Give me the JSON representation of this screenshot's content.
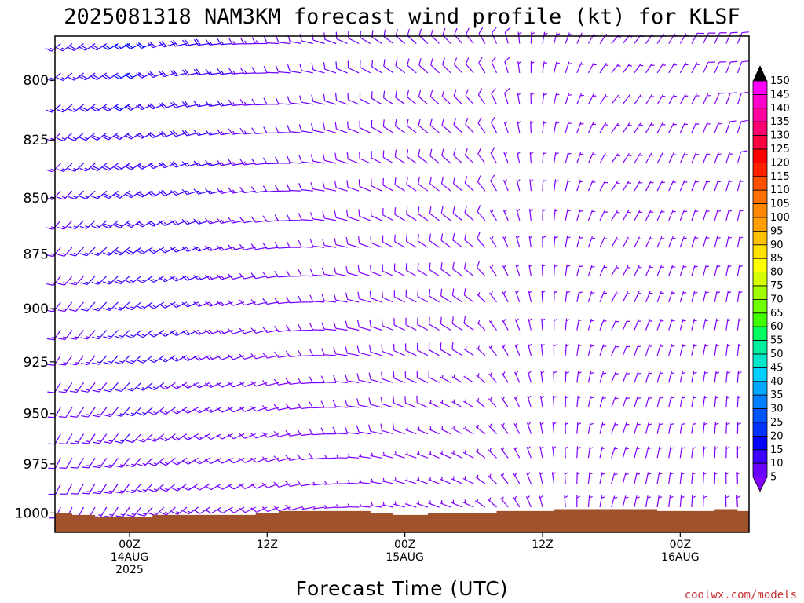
{
  "title": "2025081318 NAM3KM forecast wind profile (kt) for KLSF",
  "credit": "coolwx.com/models",
  "chart_data": {
    "type": "wind-barb-time-height",
    "xlabel": "Forecast Time (UTC)",
    "ylabel": "",
    "y_ticks": [
      "800",
      "825",
      "850",
      "875",
      "900",
      "925",
      "950",
      "975",
      "1000"
    ],
    "y_range_hpa": [
      782,
      1010
    ],
    "x_range_hours": [
      -6.5,
      54
    ],
    "x_ticks": [
      {
        "hour": 0,
        "line1": "00Z",
        "line2": "14AUG",
        "line3": "2025"
      },
      {
        "hour": 12,
        "line1": "12Z",
        "line2": "",
        "line3": ""
      },
      {
        "hour": 24,
        "line1": "00Z",
        "line2": "15AUG",
        "line3": ""
      },
      {
        "hour": 36,
        "line1": "12Z",
        "line2": "",
        "line3": ""
      },
      {
        "hour": 48,
        "line1": "00Z",
        "line2": "16AUG",
        "line3": ""
      }
    ],
    "levels_hpa": [
      785,
      797,
      810,
      822,
      835,
      847,
      860,
      872,
      885,
      897,
      910,
      922,
      935,
      947,
      960,
      972,
      985,
      997
    ],
    "wind_keyframes": [
      {
        "hour": -6,
        "speed": 15,
        "dir": 230
      },
      {
        "hour": 0,
        "speed": 20,
        "dir": 240
      },
      {
        "hour": 6,
        "speed": 18,
        "dir": 260
      },
      {
        "hour": 12,
        "speed": 12,
        "dir": 270
      },
      {
        "hour": 18,
        "speed": 10,
        "dir": 290
      },
      {
        "hour": 24,
        "speed": 10,
        "dir": 310
      },
      {
        "hour": 30,
        "speed": 9,
        "dir": 320
      },
      {
        "hour": 36,
        "speed": 6,
        "dir": 10
      },
      {
        "hour": 42,
        "speed": 5,
        "dir": 40
      },
      {
        "hour": 48,
        "speed": 7,
        "dir": 30
      },
      {
        "hour": 54,
        "speed": 8,
        "dir": 20
      }
    ],
    "surface_pressure": [
      {
        "hour": -6.5,
        "hpa": 1000
      },
      {
        "hour": -5,
        "hpa": 1001
      },
      {
        "hour": -3,
        "hpa": 1002
      },
      {
        "hour": 1,
        "hpa": 1002
      },
      {
        "hour": 2,
        "hpa": 1001
      },
      {
        "hour": 9,
        "hpa": 1001
      },
      {
        "hour": 11,
        "hpa": 1000
      },
      {
        "hour": 13,
        "hpa": 999
      },
      {
        "hour": 19,
        "hpa": 999
      },
      {
        "hour": 21,
        "hpa": 1000
      },
      {
        "hour": 23,
        "hpa": 1001
      },
      {
        "hour": 26,
        "hpa": 1000
      },
      {
        "hour": 32,
        "hpa": 999
      },
      {
        "hour": 37,
        "hpa": 998
      },
      {
        "hour": 46,
        "hpa": 999
      },
      {
        "hour": 51,
        "hpa": 998
      },
      {
        "hour": 53,
        "hpa": 999
      },
      {
        "hour": 54,
        "hpa": 999
      }
    ],
    "colorbar": {
      "labels": [
        5,
        10,
        15,
        20,
        25,
        30,
        35,
        40,
        45,
        50,
        55,
        60,
        65,
        70,
        75,
        80,
        85,
        90,
        95,
        100,
        105,
        110,
        115,
        120,
        125,
        130,
        135,
        140,
        145,
        150
      ],
      "colors": [
        "#7f00ff",
        "#6a00ff",
        "#3c00ff",
        "#0000ff",
        "#0032ff",
        "#0055ff",
        "#0080ff",
        "#00a8ff",
        "#00d0ff",
        "#00e8c8",
        "#00f0a0",
        "#00ff60",
        "#40ff00",
        "#70ff00",
        "#a0ff00",
        "#d8ff00",
        "#ffff00",
        "#ffe000",
        "#ffc000",
        "#ffa000",
        "#ff8800",
        "#ff7000",
        "#ff5000",
        "#ff2000",
        "#ff0000",
        "#ff0040",
        "#ff0070",
        "#ff00a0",
        "#ff00cc",
        "#ff00ff"
      ],
      "top_arrow_color": "#000000",
      "bottom_arrow_color": "#7f00ff"
    },
    "terrain_color": "#a0522d"
  }
}
